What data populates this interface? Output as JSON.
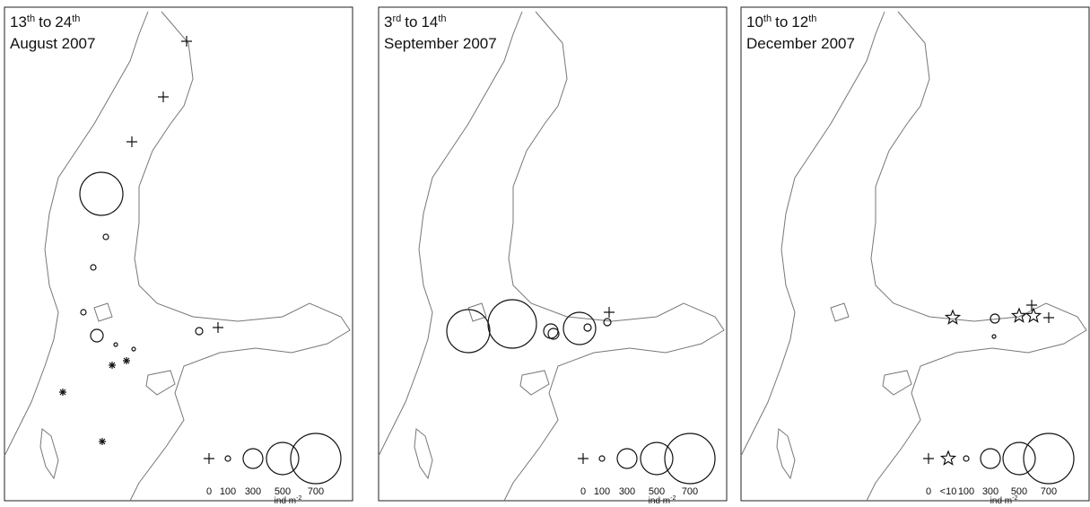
{
  "panels": [
    {
      "start": "13",
      "start_suffix": "th",
      "to": "to",
      "end": "24",
      "end_suffix": "th",
      "month_year": "August 2007",
      "legend": {
        "labels": [
          "0",
          "100",
          "300",
          "500",
          "700"
        ],
        "unit": "ind m",
        "unit_exponent": "-2"
      }
    },
    {
      "start": "3",
      "start_suffix": "rd",
      "to": "to",
      "end": "14",
      "end_suffix": "th",
      "month_year": "September 2007",
      "legend": {
        "labels": [
          "0",
          "100",
          "300",
          "500",
          "700"
        ],
        "unit": "ind m",
        "unit_exponent": "-2"
      }
    },
    {
      "start": "10",
      "start_suffix": "th",
      "to": "to",
      "end": "12",
      "end_suffix": "th",
      "month_year": "December 2007",
      "legend": {
        "labels": [
          "0",
          "<10",
          "100",
          "300",
          "500",
          "700"
        ],
        "unit": "ind m",
        "unit_exponent": "-2"
      }
    }
  ]
}
